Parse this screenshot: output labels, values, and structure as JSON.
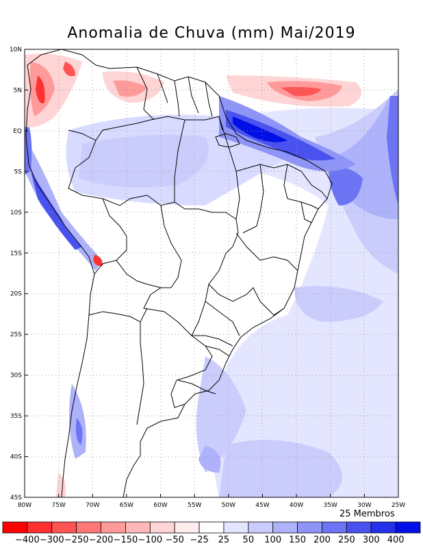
{
  "title": "Anomalia de Chuva (mm) Mai/2019",
  "members": "25 Membros",
  "lat_labels": [
    "10N",
    "5N",
    "EQ",
    "5S",
    "10S",
    "15S",
    "20S",
    "25S",
    "30S",
    "35S",
    "40S",
    "45S"
  ],
  "lon_labels": [
    "80W",
    "75W",
    "70W",
    "65W",
    "60W",
    "55W",
    "50W",
    "45W",
    "40W",
    "35W",
    "30W",
    "25W"
  ],
  "lat_values": [
    10,
    5,
    0,
    -5,
    -10,
    -15,
    -20,
    -25,
    -30,
    -35,
    -40,
    -45
  ],
  "lon_values": [
    -80,
    -75,
    -70,
    -65,
    -60,
    -55,
    -50,
    -45,
    -40,
    -35,
    -30,
    -25
  ],
  "colorbar": {
    "labels": [
      "-400",
      "-300",
      "-250",
      "-200",
      "-150",
      "-100",
      "-50",
      "-25",
      "25",
      "50",
      "100",
      "150",
      "200",
      "250",
      "300",
      "400"
    ],
    "colors": [
      "#ff0000",
      "#ff3030",
      "#ff5454",
      "#ff7878",
      "#ff9a9a",
      "#ffb8b8",
      "#ffd4d4",
      "#ffecec",
      "#ffffff",
      "#e4e6ff",
      "#cacdfc",
      "#adb2fa",
      "#8e95f7",
      "#6c74f3",
      "#4952ef",
      "#2530ea",
      "#0010e6"
    ]
  }
}
